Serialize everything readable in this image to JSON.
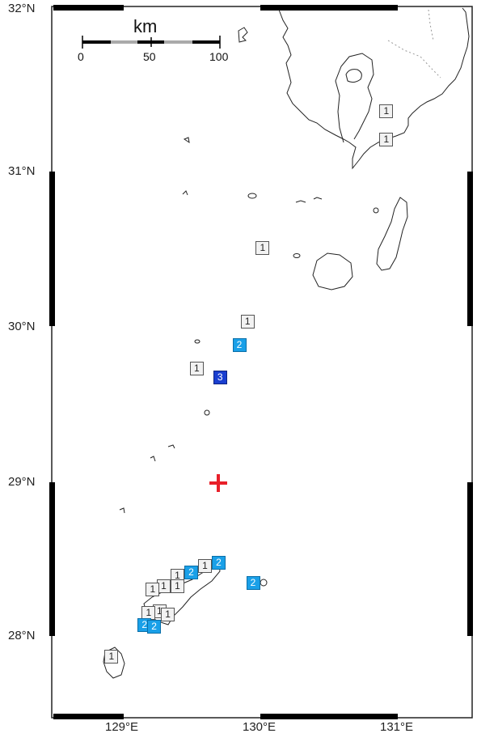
{
  "map": {
    "latitude_labels": [
      "32°N",
      "31°N",
      "30°N",
      "29°N",
      "28°N"
    ],
    "longitude_labels": [
      "129°E",
      "130°E",
      "131°E"
    ],
    "scale_bar": {
      "unit": "km",
      "ticks": [
        "0",
        "50",
        "100"
      ]
    },
    "epicenter": {
      "symbol": "red-cross",
      "lat": 28.95,
      "lon": 129.7,
      "color": "#e8202a"
    },
    "intensity_colors": {
      "1": "#f2f2f2",
      "2": "#1aa0e8",
      "3": "#1a3fd0"
    },
    "stations": [
      {
        "intensity": "1",
        "lat": 31.34,
        "lon": 130.92
      },
      {
        "intensity": "1",
        "lat": 31.16,
        "lon": 130.92
      },
      {
        "intensity": "1",
        "lat": 30.46,
        "lon": 130.02
      },
      {
        "intensity": "1",
        "lat": 29.99,
        "lon": 129.91
      },
      {
        "intensity": "2",
        "lat": 29.84,
        "lon": 129.85
      },
      {
        "intensity": "1",
        "lat": 29.69,
        "lon": 129.54
      },
      {
        "intensity": "3",
        "lat": 29.63,
        "lon": 129.71
      },
      {
        "intensity": "2",
        "lat": 28.44,
        "lon": 129.7
      },
      {
        "intensity": "1",
        "lat": 28.42,
        "lon": 129.6
      },
      {
        "intensity": "2",
        "lat": 28.38,
        "lon": 129.5
      },
      {
        "intensity": "1",
        "lat": 28.36,
        "lon": 129.4
      },
      {
        "intensity": "1",
        "lat": 28.29,
        "lon": 129.4
      },
      {
        "intensity": "1",
        "lat": 28.29,
        "lon": 129.3
      },
      {
        "intensity": "1",
        "lat": 28.27,
        "lon": 129.22
      },
      {
        "intensity": "2",
        "lat": 28.31,
        "lon": 129.95
      },
      {
        "intensity": "1",
        "lat": 28.13,
        "lon": 129.27
      },
      {
        "intensity": "1",
        "lat": 28.11,
        "lon": 129.33
      },
      {
        "intensity": "1",
        "lat": 28.12,
        "lon": 129.19
      },
      {
        "intensity": "2",
        "lat": 28.04,
        "lon": 129.16
      },
      {
        "intensity": "2",
        "lat": 28.03,
        "lon": 129.23
      },
      {
        "intensity": "1",
        "lat": 27.84,
        "lon": 128.92
      }
    ]
  }
}
